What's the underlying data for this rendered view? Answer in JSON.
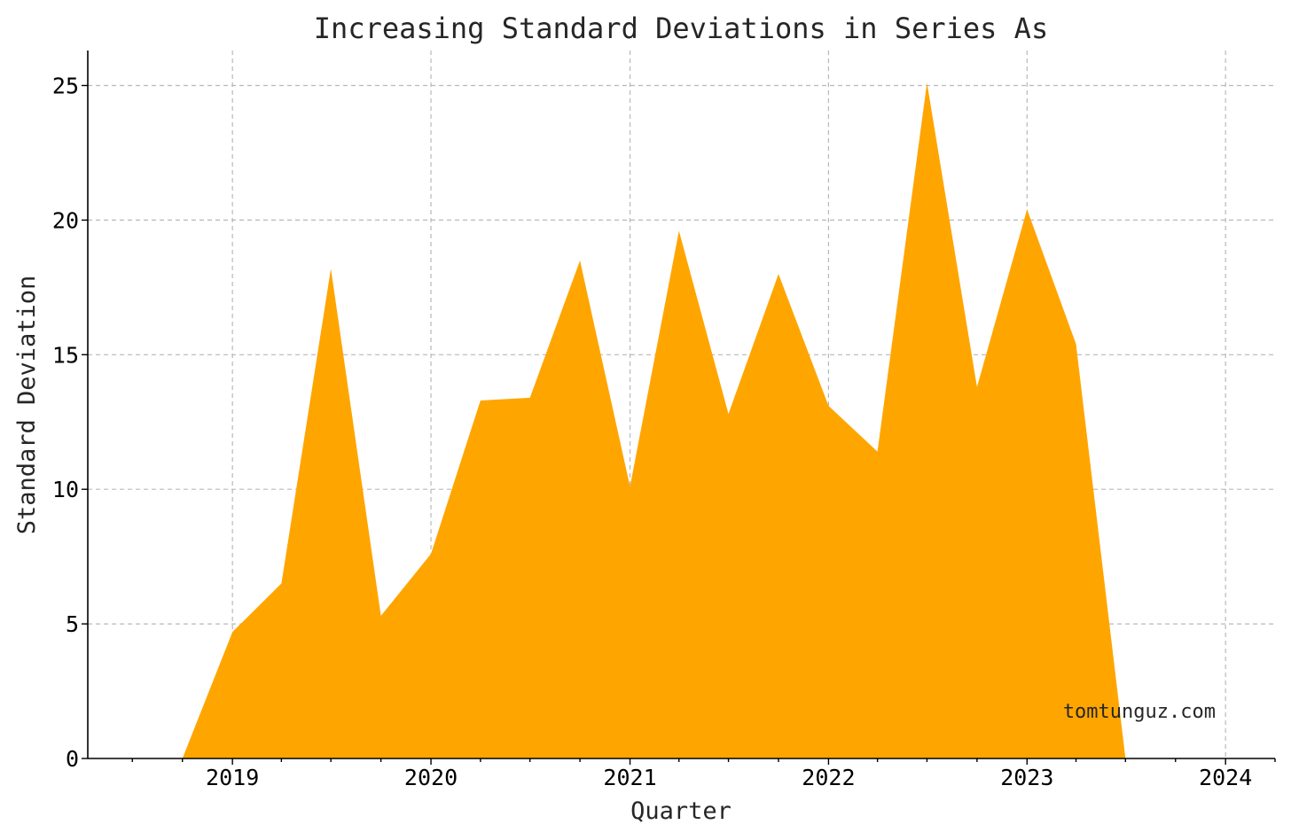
{
  "chart_data": {
    "type": "area",
    "title": "Increasing Standard Deviations in Series As",
    "xlabel": "Quarter",
    "ylabel": "Standard Deviation",
    "watermark": "tomtunguz.com",
    "xlim": [
      "2018-04-10",
      "2024-04-01"
    ],
    "ylim": [
      0,
      26.3
    ],
    "x_ticks": [
      "2019",
      "2020",
      "2021",
      "2022",
      "2023",
      "2024"
    ],
    "y_ticks": [
      0,
      5,
      10,
      15,
      20,
      25
    ],
    "grid": true,
    "fill_color": "#FFA500",
    "x": [
      "2018-04-01",
      "2018-07-01",
      "2018-10-01",
      "2019-01-01",
      "2019-04-01",
      "2019-07-01",
      "2019-10-01",
      "2020-01-01",
      "2020-04-01",
      "2020-07-01",
      "2020-10-01",
      "2021-01-01",
      "2021-04-01",
      "2021-07-01",
      "2021-10-01",
      "2022-01-01",
      "2022-04-01",
      "2022-07-01",
      "2022-10-01",
      "2023-01-01",
      "2023-04-01",
      "2023-07-01",
      "2023-10-01",
      "2024-01-01",
      "2024-04-01"
    ],
    "values": [
      0,
      0,
      0,
      4.7,
      6.5,
      18.2,
      5.3,
      7.6,
      13.3,
      13.4,
      18.5,
      10.1,
      19.6,
      12.8,
      18.0,
      13.1,
      11.4,
      25.1,
      13.8,
      20.4,
      15.4,
      0,
      0,
      0,
      0
    ]
  }
}
